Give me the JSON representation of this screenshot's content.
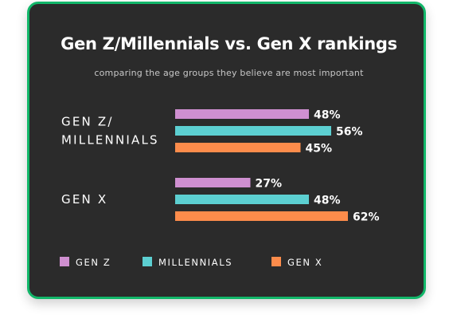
{
  "title": "Gen Z/Millennials vs. Gen X rankings",
  "subtitle": "comparing the age groups they believe are most important",
  "chart_data": {
    "type": "bar",
    "orientation": "horizontal",
    "groups": [
      {
        "label_lines": [
          "GEN Z/",
          "MILLENNIALS"
        ]
      },
      {
        "label_lines": [
          "GEN X"
        ]
      }
    ],
    "series": [
      {
        "name": "GEN Z",
        "color": "#cf8fd0",
        "values": [
          48,
          27
        ]
      },
      {
        "name": "MILLENNIALS",
        "color": "#5ccfd1",
        "values": [
          56,
          48
        ]
      },
      {
        "name": "GEN X",
        "color": "#fd8c4b",
        "values": [
          45,
          62
        ]
      }
    ],
    "value_suffix": "%",
    "xlim": [
      0,
      100
    ],
    "grid": false,
    "legend_position": "bottom-left"
  }
}
